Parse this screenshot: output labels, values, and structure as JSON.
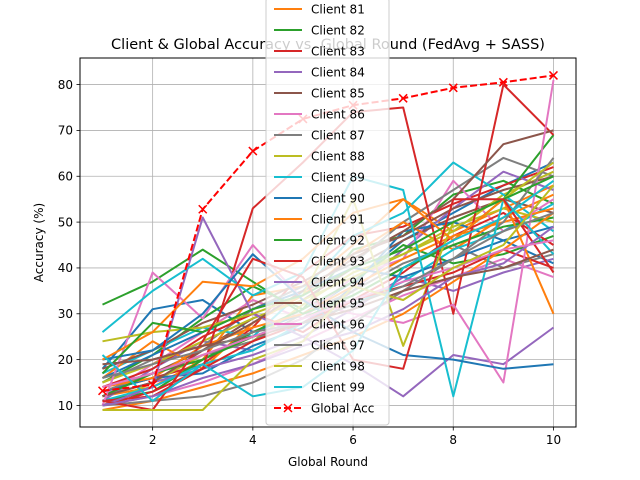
{
  "chart_data": {
    "type": "line",
    "title": "Client & Global Accuracy vs. Global Round (FedAvg + SASS)",
    "xlabel": "Global Round",
    "ylabel": "Accuracy (%)",
    "xlim": [
      0.55,
      10.45
    ],
    "ylim": [
      5.3,
      85.8
    ],
    "xticks": [
      2,
      4,
      6,
      8,
      10
    ],
    "yticks": [
      10,
      20,
      30,
      40,
      50,
      60,
      70,
      80
    ],
    "grid": true,
    "legend_position": "upper-center",
    "x": [
      1,
      2,
      3,
      4,
      5,
      6,
      7,
      8,
      9,
      10
    ],
    "series": [
      {
        "name": "Client 81",
        "color": "#ff7f0e",
        "values": [
          9,
          11,
          14,
          17,
          21,
          25,
          30,
          37,
          44,
          52
        ]
      },
      {
        "name": "Client 82",
        "color": "#2ca02c",
        "values": [
          32,
          37,
          44,
          37,
          30,
          34,
          40,
          46,
          55,
          69
        ]
      },
      {
        "name": "Client 83",
        "color": "#d62728",
        "values": [
          11,
          12,
          18,
          53,
          63,
          74,
          75,
          30,
          80,
          69
        ]
      },
      {
        "name": "Client 84",
        "color": "#9467bd",
        "values": [
          10,
          14,
          51,
          30,
          25,
          19,
          12,
          21,
          19,
          27
        ]
      },
      {
        "name": "Client 85",
        "color": "#8c564b",
        "values": [
          12,
          15,
          22,
          28,
          35,
          42,
          48,
          55,
          67,
          70
        ]
      },
      {
        "name": "Client 86",
        "color": "#e377c2",
        "values": [
          10,
          39,
          29,
          45,
          33,
          30,
          28,
          32,
          15,
          81
        ]
      },
      {
        "name": "Client 87",
        "color": "#7f7f7f",
        "values": [
          10,
          11,
          12,
          15,
          20,
          28,
          35,
          42,
          50,
          64
        ]
      },
      {
        "name": "Client 88",
        "color": "#bcbd22",
        "values": [
          24,
          26,
          27,
          30,
          34,
          55,
          23,
          50,
          55,
          63
        ]
      },
      {
        "name": "Client 89",
        "color": "#17becf",
        "values": [
          26,
          35,
          42,
          34,
          39,
          60,
          57,
          12,
          55,
          43
        ]
      },
      {
        "name": "Client 90",
        "color": "#1f77b4",
        "values": [
          20,
          22,
          30,
          43,
          33,
          26,
          21,
          20,
          18,
          19
        ]
      },
      {
        "name": "Client 91",
        "color": "#ff7f0e",
        "values": [
          20,
          26,
          37,
          36,
          42,
          52,
          55,
          46,
          55,
          30
        ]
      },
      {
        "name": "Client 92",
        "color": "#2ca02c",
        "values": [
          17,
          28,
          26,
          31,
          34,
          40,
          44,
          50,
          55,
          60
        ]
      },
      {
        "name": "Client 93",
        "color": "#d62728",
        "values": [
          11,
          9,
          24,
          42,
          38,
          20,
          18,
          55,
          55,
          39
        ]
      },
      {
        "name": "Client 94",
        "color": "#9467bd",
        "values": [
          10,
          12,
          16,
          19,
          23,
          26,
          31,
          38,
          41,
          49
        ]
      },
      {
        "name": "Client 95",
        "color": "#8c564b",
        "values": [
          19,
          20,
          23,
          25,
          28,
          31,
          35,
          38,
          40,
          44
        ]
      },
      {
        "name": "Client 96",
        "color": "#e377c2",
        "values": [
          14,
          17,
          21,
          25,
          29,
          33,
          37,
          40,
          44,
          46
        ]
      },
      {
        "name": "Client 97",
        "color": "#7f7f7f",
        "values": [
          16,
          19,
          22,
          26,
          28,
          32,
          36,
          42,
          48,
          52
        ]
      },
      {
        "name": "Client 98",
        "color": "#bcbd22",
        "values": [
          9,
          9,
          9,
          20,
          24,
          36,
          33,
          40,
          45,
          58
        ]
      },
      {
        "name": "Client 99",
        "color": "#17becf",
        "values": [
          21,
          11,
          19,
          12,
          14,
          22,
          40,
          46,
          51,
          59
        ]
      },
      {
        "name": "Global Acc",
        "color": "#ff0000",
        "dashed": true,
        "marker": "x",
        "values": [
          13.2,
          14.5,
          52.8,
          65.5,
          72.5,
          75.5,
          77.0,
          79.3,
          80.5,
          82.0
        ]
      }
    ],
    "background_series": [
      {
        "color": "#1f77b4",
        "values": [
          18,
          31,
          33,
          26,
          30,
          37,
          46,
          52,
          58,
          63
        ]
      },
      {
        "color": "#ff7f0e",
        "values": [
          12,
          14,
          20,
          34,
          36,
          45,
          55,
          48,
          53,
          58
        ]
      },
      {
        "color": "#2ca02c",
        "values": [
          15,
          21,
          29,
          36,
          31,
          44,
          47,
          56,
          59,
          54
        ]
      },
      {
        "color": "#d62728",
        "values": [
          13,
          16,
          19,
          27,
          39,
          47,
          49,
          54,
          58,
          62
        ]
      },
      {
        "color": "#9467bd",
        "values": [
          11,
          18,
          24,
          22,
          28,
          35,
          44,
          53,
          61,
          57
        ]
      },
      {
        "color": "#8c564b",
        "values": [
          14,
          17,
          22,
          29,
          33,
          40,
          46,
          51,
          55,
          52
        ]
      },
      {
        "color": "#e377c2",
        "values": [
          12,
          19,
          26,
          33,
          29,
          38,
          42,
          59,
          48,
          55
        ]
      },
      {
        "color": "#7f7f7f",
        "values": [
          15,
          20,
          23,
          31,
          36,
          41,
          50,
          57,
          64,
          60
        ]
      },
      {
        "color": "#bcbd22",
        "values": [
          10,
          15,
          21,
          24,
          32,
          39,
          43,
          48,
          56,
          61
        ]
      },
      {
        "color": "#17becf",
        "values": [
          17,
          22,
          27,
          25,
          35,
          47,
          52,
          63,
          56,
          48
        ]
      },
      {
        "color": "#1f77b4",
        "values": [
          13,
          16,
          17,
          23,
          27,
          36,
          48,
          50,
          46,
          41
        ]
      },
      {
        "color": "#ff7f0e",
        "values": [
          16,
          24,
          18,
          28,
          34,
          43,
          50,
          44,
          51,
          56
        ]
      },
      {
        "color": "#2ca02c",
        "values": [
          11,
          13,
          20,
          26,
          31,
          37,
          45,
          41,
          43,
          47
        ]
      },
      {
        "color": "#d62728",
        "values": [
          14,
          18,
          25,
          30,
          26,
          33,
          39,
          47,
          52,
          45
        ]
      },
      {
        "color": "#9467bd",
        "values": [
          12,
          15,
          18,
          21,
          25,
          31,
          38,
          35,
          39,
          42
        ]
      },
      {
        "color": "#8c564b",
        "values": [
          18,
          22,
          28,
          32,
          37,
          43,
          47,
          53,
          57,
          60
        ]
      },
      {
        "color": "#e377c2",
        "values": [
          10,
          12,
          15,
          19,
          24,
          29,
          34,
          38,
          42,
          38
        ]
      },
      {
        "color": "#7f7f7f",
        "values": [
          13,
          17,
          21,
          24,
          30,
          35,
          41,
          45,
          40,
          43
        ]
      },
      {
        "color": "#bcbd22",
        "values": [
          15,
          19,
          24,
          29,
          33,
          38,
          43,
          49,
          53,
          50
        ]
      },
      {
        "color": "#17becf",
        "values": [
          11,
          14,
          19,
          22,
          28,
          32,
          37,
          44,
          48,
          54
        ]
      },
      {
        "color": "#1f77b4",
        "values": [
          16,
          21,
          26,
          31,
          35,
          40,
          38,
          42,
          46,
          49
        ]
      },
      {
        "color": "#ff7f0e",
        "values": [
          14,
          16,
          23,
          27,
          30,
          36,
          42,
          47,
          50,
          53
        ]
      },
      {
        "color": "#2ca02c",
        "values": [
          12,
          17,
          20,
          25,
          29,
          34,
          40,
          45,
          49,
          51
        ]
      },
      {
        "color": "#d62728",
        "values": [
          10,
          13,
          18,
          24,
          28,
          33,
          36,
          39,
          44,
          40
        ]
      }
    ]
  }
}
